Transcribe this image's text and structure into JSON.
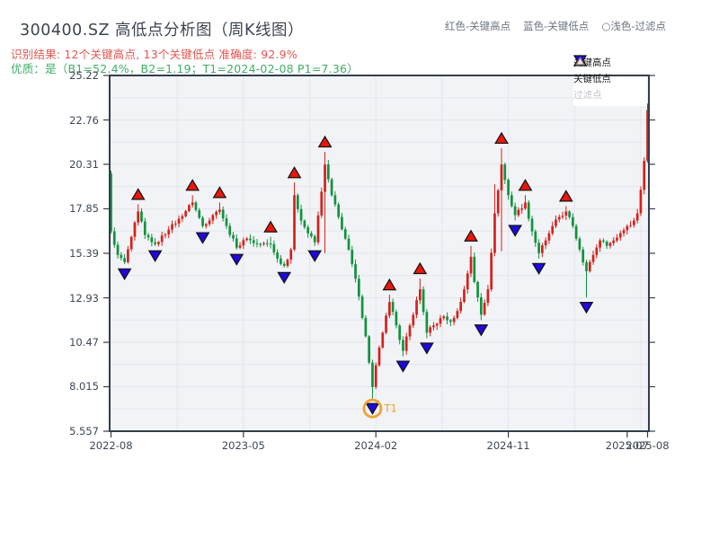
{
  "header": {
    "title": "300400.SZ 高低点分析图（周K线图）",
    "result_line": "识别结果: 12个关键高点, 13个关键低点  准确度: 92.9%",
    "quality_line": "优质：是（B1=52.4%，B2=1.19；T1=2024-02-08 P1=7.36）",
    "legend_note_high": "红色-关键高点",
    "legend_note_low": "蓝色-关键低点",
    "legend_note_filtered": "○浅色-过滤点"
  },
  "chart_data": {
    "type": "candlestick",
    "subtype": "weekly-kline-high-low-analysis",
    "symbol": "300400.SZ",
    "stats": {
      "key_high_count": 12,
      "key_low_count": 13,
      "accuracy": "92.9%",
      "B1": "52.4%",
      "B2": "1.19",
      "T1_date": "2024-02-08",
      "P1": 7.36
    },
    "ylim": [
      5.557,
      25.22
    ],
    "weeks_total": 159,
    "open_start": 19.8,
    "y_ticks": [
      {
        "value": 25.22,
        "label": "25.22"
      },
      {
        "value": 22.76,
        "label": "22.76"
      },
      {
        "value": 20.31,
        "label": "20.31"
      },
      {
        "value": 17.85,
        "label": "17.85"
      },
      {
        "value": 15.39,
        "label": "15.39"
      },
      {
        "value": 12.93,
        "label": "12.93"
      },
      {
        "value": 10.47,
        "label": "10.47"
      },
      {
        "value": 8.015,
        "label": "8.015"
      },
      {
        "value": 5.557,
        "label": "5.557"
      }
    ],
    "x_ticks": [
      {
        "week": 0,
        "label": "2022-08"
      },
      {
        "week": 39,
        "label": "2023-05"
      },
      {
        "week": 78,
        "label": "2024-02"
      },
      {
        "week": 117,
        "label": "2024-11"
      },
      {
        "week": 152,
        "label": "2025-07"
      },
      {
        "week": 158,
        "label": "2025-08"
      }
    ],
    "grid_weeks": [
      19.5,
      39,
      58.5,
      78,
      97.5,
      117,
      136.5,
      156
    ],
    "anchors": [
      [
        0,
        16.6
      ],
      [
        2,
        15.3
      ],
      [
        4,
        14.9
      ],
      [
        6,
        16.3
      ],
      [
        8,
        17.7
      ],
      [
        10,
        16.4
      ],
      [
        13,
        15.9
      ],
      [
        17,
        16.7
      ],
      [
        20,
        17.3
      ],
      [
        24,
        18.2
      ],
      [
        27,
        16.9
      ],
      [
        30,
        17.5
      ],
      [
        32,
        17.8
      ],
      [
        34,
        16.9
      ],
      [
        37,
        15.7
      ],
      [
        40,
        16.2
      ],
      [
        43,
        15.9
      ],
      [
        47,
        15.9
      ],
      [
        49,
        15.1
      ],
      [
        51,
        14.7
      ],
      [
        53,
        15.6
      ],
      [
        54,
        18.6
      ],
      [
        56,
        17.2
      ],
      [
        58,
        16.5
      ],
      [
        60,
        16.0
      ],
      [
        63,
        20.3
      ],
      [
        65,
        18.6
      ],
      [
        67,
        17.4
      ],
      [
        69,
        16.2
      ],
      [
        71,
        14.8
      ],
      [
        73,
        13.0
      ],
      [
        75,
        10.8
      ],
      [
        77,
        8.0
      ],
      [
        78,
        9.2
      ],
      [
        80,
        11.0
      ],
      [
        82,
        12.7
      ],
      [
        84,
        11.4
      ],
      [
        86,
        10.0
      ],
      [
        88,
        11.4
      ],
      [
        90,
        12.8
      ],
      [
        91,
        13.4
      ],
      [
        93,
        11.0
      ],
      [
        95,
        11.4
      ],
      [
        98,
        11.9
      ],
      [
        100,
        11.6
      ],
      [
        102,
        12.2
      ],
      [
        104,
        13.4
      ],
      [
        106,
        15.2
      ],
      [
        107,
        13.8
      ],
      [
        109,
        12.0
      ],
      [
        111,
        13.4
      ],
      [
        113,
        17.6
      ],
      [
        115,
        20.3
      ],
      [
        117,
        18.6
      ],
      [
        119,
        17.5
      ],
      [
        122,
        18.2
      ],
      [
        124,
        16.6
      ],
      [
        126,
        15.4
      ],
      [
        128,
        16.1
      ],
      [
        130,
        16.9
      ],
      [
        132,
        17.4
      ],
      [
        134,
        17.7
      ],
      [
        136,
        16.9
      ],
      [
        138,
        15.6
      ],
      [
        140,
        14.4
      ],
      [
        142,
        15.3
      ],
      [
        144,
        16.1
      ],
      [
        146,
        15.8
      ],
      [
        148,
        16.1
      ],
      [
        150,
        16.5
      ],
      [
        152,
        16.9
      ],
      [
        154,
        17.2
      ],
      [
        155,
        17.6
      ],
      [
        156,
        18.9
      ],
      [
        157,
        20.5
      ],
      [
        158,
        23.3
      ]
    ],
    "wick_overrides": {
      "54": {
        "hi": 19.3
      },
      "63": {
        "hi": 21.0,
        "lo": 15.4
      },
      "77": {
        "lo": 7.36
      },
      "113": {
        "hi": 19.2
      },
      "115": {
        "hi": 21.2,
        "lo": 15.5
      },
      "140": {
        "lo": 12.95
      },
      "157": {
        "hi": 20.7
      },
      "158": {
        "hi": 23.67
      }
    },
    "key_highs": [
      {
        "week": 8,
        "value": 18.1
      },
      {
        "week": 24,
        "value": 18.6
      },
      {
        "week": 32,
        "value": 18.2
      },
      {
        "week": 47,
        "value": 16.3
      },
      {
        "week": 54,
        "value": 19.3
      },
      {
        "week": 63,
        "value": 21.0
      },
      {
        "week": 82,
        "value": 13.1
      },
      {
        "week": 91,
        "value": 14.0
      },
      {
        "week": 106,
        "value": 15.8
      },
      {
        "week": 115,
        "value": 21.2
      },
      {
        "week": 122,
        "value": 18.6
      },
      {
        "week": 134,
        "value": 18.0
      }
    ],
    "key_lows": [
      {
        "week": 4,
        "value": 14.8
      },
      {
        "week": 13,
        "value": 15.8
      },
      {
        "week": 27,
        "value": 16.8
      },
      {
        "week": 37,
        "value": 15.6
      },
      {
        "week": 51,
        "value": 14.6
      },
      {
        "week": 60,
        "value": 15.8
      },
      {
        "week": 77,
        "value": 7.36
      },
      {
        "week": 86,
        "value": 9.7
      },
      {
        "week": 93,
        "value": 10.7
      },
      {
        "week": 109,
        "value": 11.7
      },
      {
        "week": 119,
        "value": 17.2
      },
      {
        "week": 126,
        "value": 15.1
      },
      {
        "week": 140,
        "value": 12.95
      }
    ],
    "t1": {
      "week": 77,
      "price": 7.36,
      "label": "T1"
    },
    "legend": [
      {
        "label": "关键高点",
        "type": "high"
      },
      {
        "label": "关键低点",
        "type": "low"
      },
      {
        "label": "过滤点",
        "type": "filtered"
      }
    ],
    "colors": {
      "up": "#d6201a",
      "down": "#12923e",
      "key_high": "#e8170c",
      "key_low": "#2008dc",
      "filtered_fill": "#f6e3e0",
      "t1": "#f0a231",
      "plot_bg": "#f1f3f6",
      "grid": "#e3e6eb",
      "spine": "#333e4c",
      "text": "#3e4856"
    }
  }
}
